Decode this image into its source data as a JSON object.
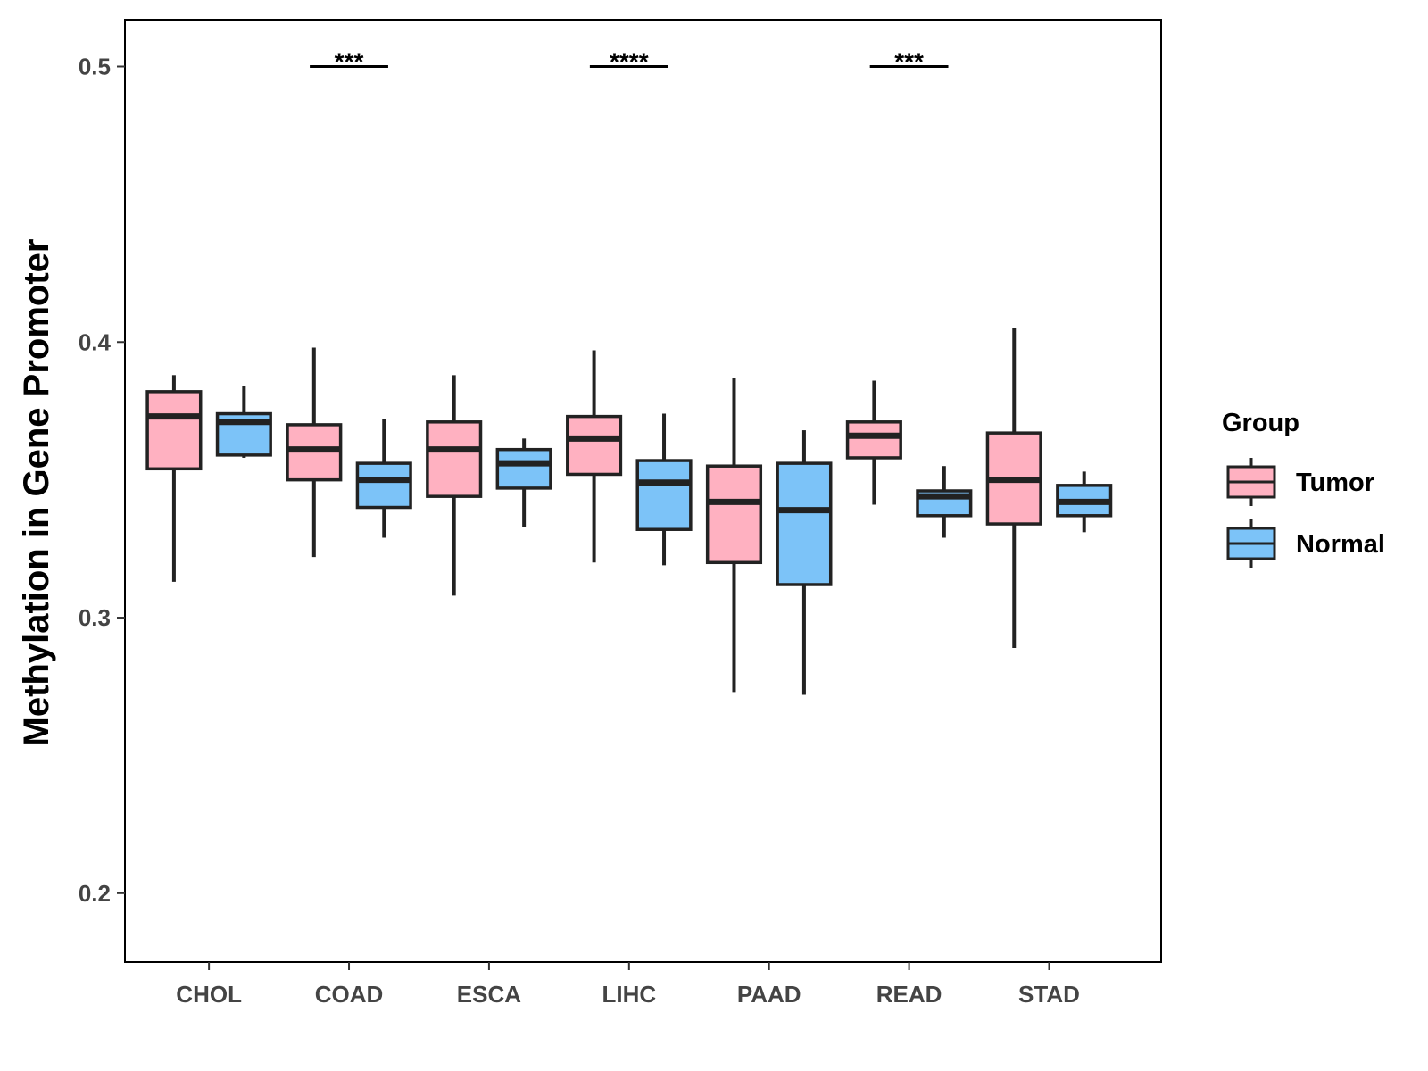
{
  "chart_data": {
    "type": "boxplot",
    "title": "",
    "xlabel": "",
    "ylabel": "Methylation in Gene Promoter",
    "ylim": [
      0.175,
      0.517
    ],
    "yticks": [
      0.2,
      0.3,
      0.4,
      0.5
    ],
    "ytick_labels": [
      "0.2",
      "0.3",
      "0.4",
      "0.5"
    ],
    "categories": [
      "CHOL",
      "COAD",
      "ESCA",
      "LIHC",
      "PAAD",
      "READ",
      "STAD"
    ],
    "grid": false,
    "legend": {
      "title": "Group",
      "position": "right",
      "entries": [
        {
          "name": "Tumor",
          "color": "#FFB1C1"
        },
        {
          "name": "Normal",
          "color": "#7CC3F8"
        }
      ]
    },
    "series": [
      {
        "name": "Tumor",
        "color": "#FFB1C1",
        "boxes": [
          {
            "whislo": 0.313,
            "q1": 0.354,
            "med": 0.373,
            "q3": 0.382,
            "whishi": 0.388
          },
          {
            "whislo": 0.322,
            "q1": 0.35,
            "med": 0.361,
            "q3": 0.37,
            "whishi": 0.398
          },
          {
            "whislo": 0.308,
            "q1": 0.344,
            "med": 0.361,
            "q3": 0.371,
            "whishi": 0.388
          },
          {
            "whislo": 0.32,
            "q1": 0.352,
            "med": 0.365,
            "q3": 0.373,
            "whishi": 0.397
          },
          {
            "whislo": 0.273,
            "q1": 0.32,
            "med": 0.342,
            "q3": 0.355,
            "whishi": 0.387
          },
          {
            "whislo": 0.341,
            "q1": 0.358,
            "med": 0.366,
            "q3": 0.371,
            "whishi": 0.386
          },
          {
            "whislo": 0.289,
            "q1": 0.334,
            "med": 0.35,
            "q3": 0.367,
            "whishi": 0.405
          }
        ]
      },
      {
        "name": "Normal",
        "color": "#7CC3F8",
        "boxes": [
          {
            "whislo": 0.358,
            "q1": 0.359,
            "med": 0.371,
            "q3": 0.374,
            "whishi": 0.384
          },
          {
            "whislo": 0.329,
            "q1": 0.34,
            "med": 0.35,
            "q3": 0.356,
            "whishi": 0.372
          },
          {
            "whislo": 0.333,
            "q1": 0.347,
            "med": 0.356,
            "q3": 0.361,
            "whishi": 0.365
          },
          {
            "whislo": 0.319,
            "q1": 0.332,
            "med": 0.349,
            "q3": 0.357,
            "whishi": 0.374
          },
          {
            "whislo": 0.272,
            "q1": 0.312,
            "med": 0.339,
            "q3": 0.356,
            "whishi": 0.368
          },
          {
            "whislo": 0.329,
            "q1": 0.337,
            "med": 0.344,
            "q3": 0.346,
            "whishi": 0.355
          },
          {
            "whislo": 0.331,
            "q1": 0.337,
            "med": 0.342,
            "q3": 0.348,
            "whishi": 0.353
          }
        ]
      }
    ],
    "annotations": [
      {
        "category": "COAD",
        "label": "***",
        "y": 0.5
      },
      {
        "category": "LIHC",
        "label": "****",
        "y": 0.5
      },
      {
        "category": "READ",
        "label": "***",
        "y": 0.5
      }
    ]
  }
}
